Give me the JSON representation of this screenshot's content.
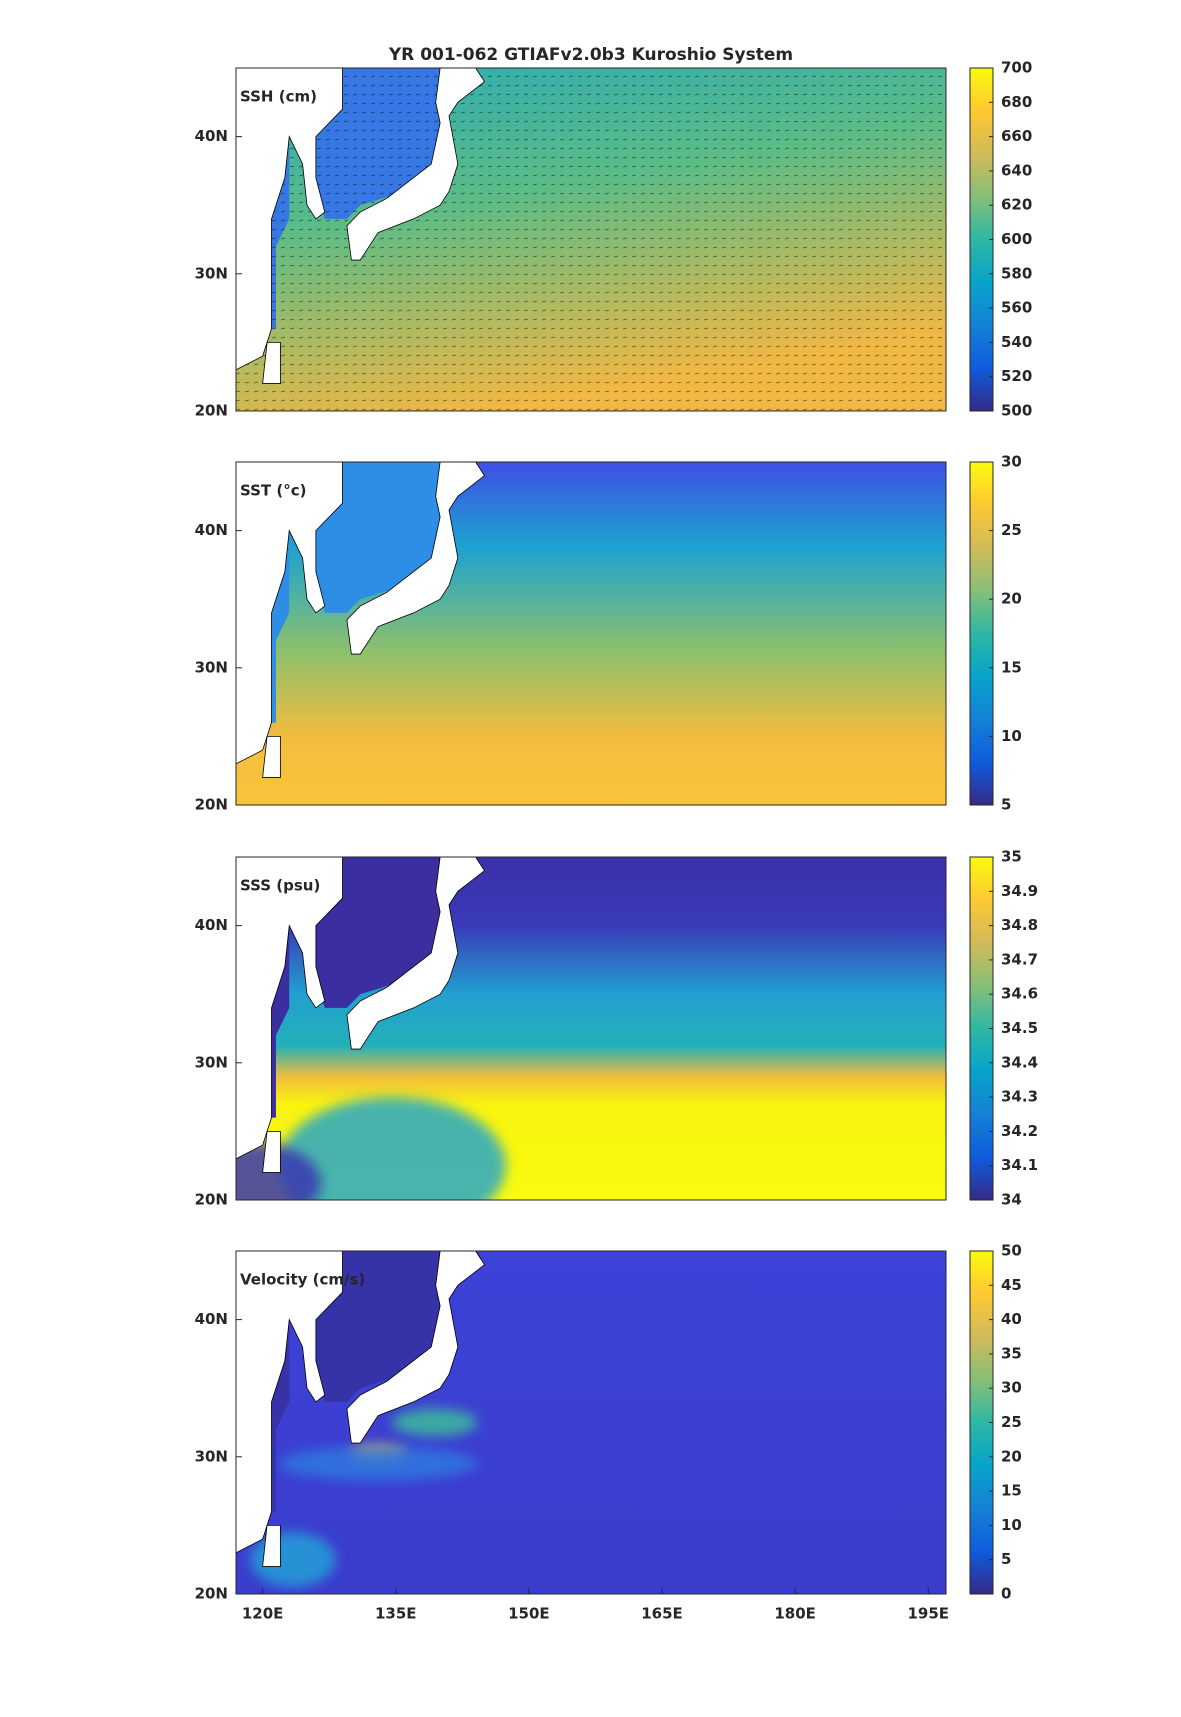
{
  "title": "YR 001-062 GTIAFv2.0b3 Kuroshio System",
  "chart_data": [
    {
      "type": "heatmap",
      "label": "SSH (cm)",
      "colormap": "parula",
      "xlim": [
        117,
        197
      ],
      "ylim": [
        20,
        45
      ],
      "yticks": [
        {
          "value": 20,
          "label": "20N"
        },
        {
          "value": 30,
          "label": "30N"
        },
        {
          "value": 40,
          "label": "40N"
        }
      ],
      "clim": [
        500,
        700
      ],
      "cticks": [
        500,
        520,
        540,
        560,
        580,
        600,
        620,
        640,
        660,
        680,
        700
      ]
    },
    {
      "type": "heatmap",
      "label": "SST (°c)",
      "colormap": "parula",
      "xlim": [
        117,
        197
      ],
      "ylim": [
        20,
        45
      ],
      "yticks": [
        {
          "value": 20,
          "label": "20N"
        },
        {
          "value": 30,
          "label": "30N"
        },
        {
          "value": 40,
          "label": "40N"
        }
      ],
      "clim": [
        5,
        30
      ],
      "cticks": [
        5,
        10,
        15,
        20,
        25,
        30
      ]
    },
    {
      "type": "heatmap",
      "label": "SSS (psu)",
      "colormap": "parula",
      "xlim": [
        117,
        197
      ],
      "ylim": [
        20,
        45
      ],
      "yticks": [
        {
          "value": 20,
          "label": "20N"
        },
        {
          "value": 30,
          "label": "30N"
        },
        {
          "value": 40,
          "label": "40N"
        }
      ],
      "clim": [
        34,
        35
      ],
      "cticks": [
        34,
        34.1,
        34.2,
        34.3,
        34.4,
        34.5,
        34.6,
        34.7,
        34.8,
        34.9,
        35
      ]
    },
    {
      "type": "heatmap",
      "label": "Velocity (cm/s)",
      "colormap": "parula",
      "xlim": [
        117,
        197
      ],
      "ylim": [
        20,
        45
      ],
      "xticks": [
        {
          "value": 120,
          "label": "120E"
        },
        {
          "value": 135,
          "label": "135E"
        },
        {
          "value": 150,
          "label": "150E"
        },
        {
          "value": 165,
          "label": "165E"
        },
        {
          "value": 180,
          "label": "180E"
        },
        {
          "value": 195,
          "label": "195E"
        }
      ],
      "yticks": [
        {
          "value": 20,
          "label": "20N"
        },
        {
          "value": 30,
          "label": "30N"
        },
        {
          "value": 40,
          "label": "40N"
        }
      ],
      "clim": [
        0,
        50
      ],
      "cticks": [
        0,
        5,
        10,
        15,
        20,
        25,
        30,
        35,
        40,
        45,
        50
      ]
    }
  ]
}
